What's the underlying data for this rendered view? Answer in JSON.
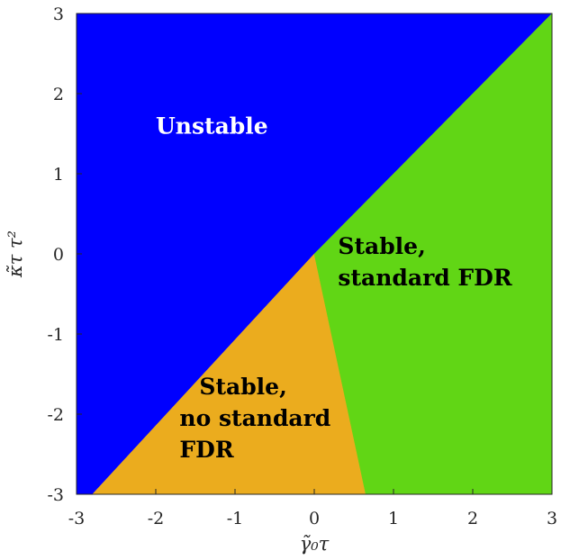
{
  "chart_data": {
    "type": "heatmap",
    "title": "",
    "xlabel": "γ̃₀τ",
    "ylabel": "κ̃τ τ²",
    "xlim": [
      -3,
      3
    ],
    "ylim": [
      -3,
      3
    ],
    "x_ticks": [
      "-3",
      "-2",
      "-1",
      "0",
      "1",
      "2",
      "3"
    ],
    "y_ticks": [
      "-3",
      "-2",
      "-1",
      "0",
      "1",
      "2",
      "3"
    ],
    "grid": false,
    "regions": [
      {
        "name": "unstable",
        "label_lines": [
          "Unstable"
        ],
        "label_at": [
          -2.0,
          1.5
        ],
        "color": "#0000ff",
        "text_color": "#ffffff",
        "polygon": [
          [
            -3,
            -3
          ],
          [
            -2.8,
            -3
          ],
          [
            0,
            0
          ],
          [
            3,
            3
          ],
          [
            -3,
            3
          ]
        ]
      },
      {
        "name": "stable-no-standard-fdr",
        "label_lines": [
          "Stable,",
          "no standard",
          "FDR"
        ],
        "label_at": [
          -1.7,
          -1.75
        ],
        "color": "#ebac1e",
        "text_color": "#000000",
        "polygon": [
          [
            -2.8,
            -3
          ],
          [
            0.65,
            -3
          ],
          [
            0,
            0
          ]
        ]
      },
      {
        "name": "stable-standard-fdr",
        "label_lines": [
          "Stable,",
          "standard FDR"
        ],
        "label_at": [
          0.3,
          0.0
        ],
        "color": "#61d615",
        "text_color": "#000000",
        "polygon": [
          [
            0,
            0
          ],
          [
            0.65,
            -3
          ],
          [
            3,
            -3
          ],
          [
            3,
            3
          ]
        ]
      }
    ]
  }
}
